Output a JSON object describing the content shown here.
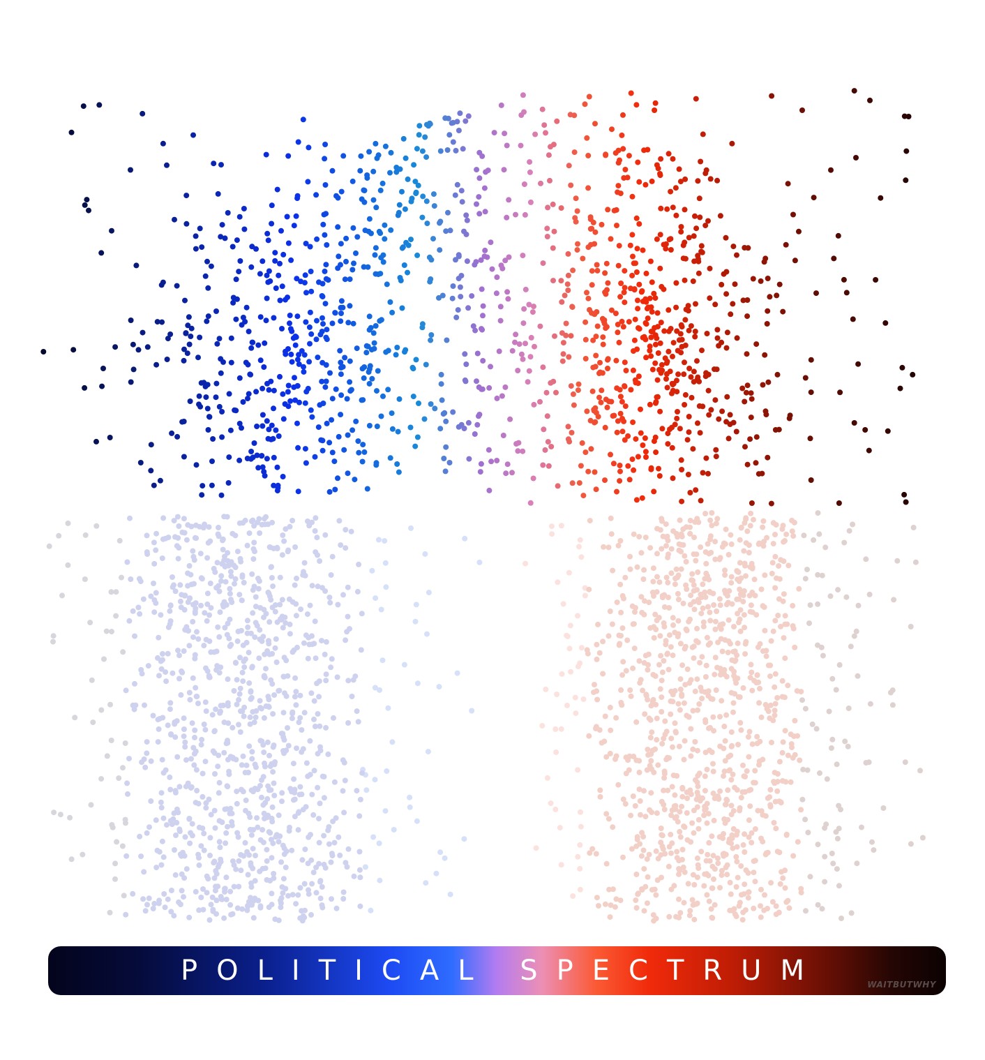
{
  "title_bar": {
    "label": "POLITICAL SPECTRUM",
    "signature": "WAITBUTWHY"
  },
  "chart_data": {
    "type": "scatter",
    "title": "POLITICAL SPECTRUM",
    "xlabel": "",
    "ylabel": "",
    "grid": false,
    "description_groups": [
      {
        "group": "left-upper",
        "name": "",
        "color_range": [
          "#050a30",
          "#0b30e8",
          "#1f8ad8"
        ]
      },
      {
        "group": "center-upper",
        "name": "",
        "color_range": [
          "#9a6ad0",
          "#e48ab8"
        ]
      },
      {
        "group": "right-upper",
        "name": "",
        "color_range": [
          "#f03a20",
          "#c01d05",
          "#3a0804"
        ]
      },
      {
        "group": "left-lower",
        "name": "",
        "color_range": [
          "#ccd0f0"
        ]
      },
      {
        "group": "right-lower",
        "name": "",
        "color_range": [
          "#f8d4cc"
        ]
      }
    ]
  },
  "colors": {
    "bar_left": "#04041c",
    "bar_blue": "#1d4af3",
    "bar_purple": "#b47cf0",
    "bar_red": "#f02a0a",
    "bar_right": "#0b0202",
    "faded_blue": "#ccd0f0",
    "faded_red": "#f7cfc6"
  }
}
